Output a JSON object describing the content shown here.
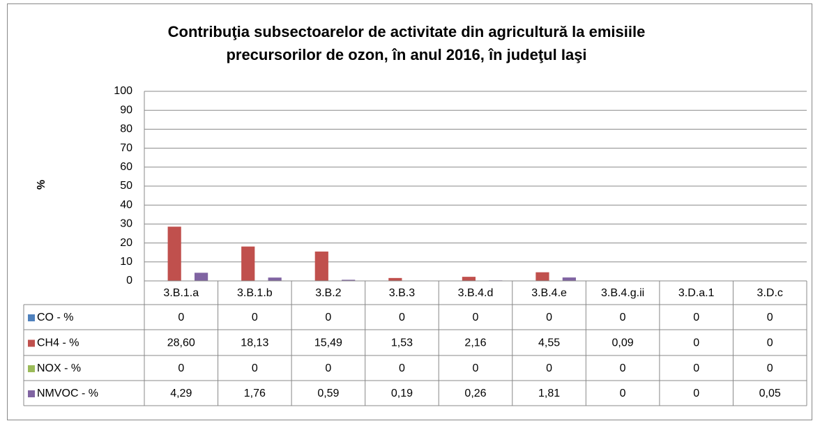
{
  "chart_data": {
    "type": "bar",
    "title": [
      "Contribuţia subsectoarelor de activitate din agricultură la emisiile",
      "precursorilor de ozon, în anul 2016, în judeţul Iaşi"
    ],
    "y_label": "%",
    "categories": [
      "3.B.1.a",
      "3.B.1.b",
      "3.B.2",
      "3.B.3",
      "3.B.4.d",
      "3.B.4.e",
      "3.B.4.g.ii",
      "3.D.a.1",
      "3.D.c"
    ],
    "series": [
      {
        "name": "CO - %",
        "color": "#4f81bd",
        "values": [
          0,
          0,
          0,
          0,
          0,
          0,
          0,
          0,
          0
        ],
        "value_labels": [
          "0",
          "0",
          "0",
          "0",
          "0",
          "0",
          "0",
          "0",
          "0"
        ]
      },
      {
        "name": "CH4 - %",
        "color": "#c0504d",
        "values": [
          28.6,
          18.13,
          15.49,
          1.53,
          2.16,
          4.55,
          0.09,
          0,
          0
        ],
        "value_labels": [
          "28,60",
          "18,13",
          "15,49",
          "1,53",
          "2,16",
          "4,55",
          "0,09",
          "0",
          "0"
        ]
      },
      {
        "name": "NOX - %",
        "color": "#9bbb59",
        "values": [
          0,
          0,
          0,
          0,
          0,
          0,
          0,
          0,
          0
        ],
        "value_labels": [
          "0",
          "0",
          "0",
          "0",
          "0",
          "0",
          "0",
          "0",
          "0"
        ]
      },
      {
        "name": "NMVOC - %",
        "color": "#8064a2",
        "values": [
          4.29,
          1.76,
          0.59,
          0.19,
          0.26,
          1.81,
          0,
          0,
          0.05
        ],
        "value_labels": [
          "4,29",
          "1,76",
          "0,59",
          "0,19",
          "0,26",
          "1,81",
          "0",
          "0",
          "0,05"
        ]
      }
    ],
    "ylim": [
      0,
      100
    ],
    "yticks": [
      0,
      10,
      20,
      30,
      40,
      50,
      60,
      70,
      80,
      90,
      100
    ],
    "grid": true
  }
}
